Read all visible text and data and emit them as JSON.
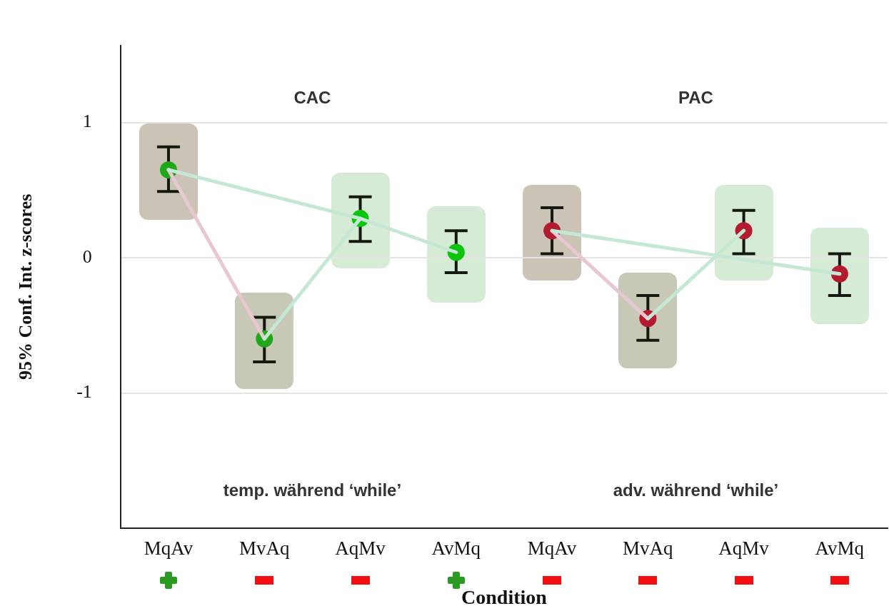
{
  "chart_data": {
    "type": "scatter",
    "xlabel": "Condition",
    "ylabel": "95% Conf. Int. z-scores",
    "categories": [
      "MqAv",
      "MvAq",
      "AqMv",
      "AvMq",
      "MqAv",
      "MvAq",
      "AqMv",
      "AvMq"
    ],
    "series": [
      {
        "type": "line",
        "color": "#c4e8d4",
        "values": [
          0.65,
          null,
          0.29,
          0.04,
          null,
          null,
          null,
          null
        ]
      },
      {
        "type": "line",
        "color": "#c4e8d4",
        "values": [
          null,
          -0.6,
          0.29,
          null,
          null,
          null,
          null,
          null
        ]
      },
      {
        "type": "line",
        "color": "#e8c8d0",
        "values": [
          0.65,
          -0.6,
          null,
          null,
          null,
          null,
          null,
          null
        ]
      },
      {
        "type": "line",
        "color": "#c4e8d4",
        "values": [
          null,
          null,
          null,
          null,
          0.2,
          null,
          null,
          -0.12
        ]
      },
      {
        "type": "line",
        "color": "#c4e8d4",
        "values": [
          null,
          null,
          null,
          null,
          null,
          -0.45,
          0.2,
          null
        ]
      },
      {
        "type": "line",
        "color": "#e8c8d0",
        "values": [
          null,
          null,
          null,
          null,
          0.2,
          -0.45,
          null,
          null
        ]
      },
      {
        "marker": "circle",
        "colors": [
          "#22a61b",
          "#22a61b",
          "#0cc40c",
          "#0cc40c",
          null,
          null,
          null,
          null
        ],
        "values": [
          0.65,
          -0.6,
          0.29,
          0.04,
          null,
          null,
          null,
          null
        ],
        "errors": [
          [
            0.49,
            0.82
          ],
          [
            -0.77,
            -0.44
          ],
          [
            0.12,
            0.45
          ],
          [
            -0.11,
            0.2
          ],
          null,
          null,
          null,
          null
        ]
      },
      {
        "marker": "circle",
        "color": "#b51b2e",
        "values": [
          null,
          null,
          null,
          null,
          0.2,
          -0.45,
          0.2,
          -0.12
        ],
        "errors": [
          null,
          null,
          null,
          null,
          [
            0.03,
            0.37
          ],
          [
            -0.61,
            -0.28
          ],
          [
            0.03,
            0.35
          ],
          [
            -0.28,
            0.03
          ]
        ]
      }
    ],
    "annotations": [
      "CAC",
      "PAC",
      "temp. während ‘while’",
      "adv. während ‘while’"
    ],
    "ylim": [
      -2,
      1.57
    ],
    "yticks": [
      1,
      0,
      -1
    ],
    "grid": "y",
    "legend": false
  }
}
